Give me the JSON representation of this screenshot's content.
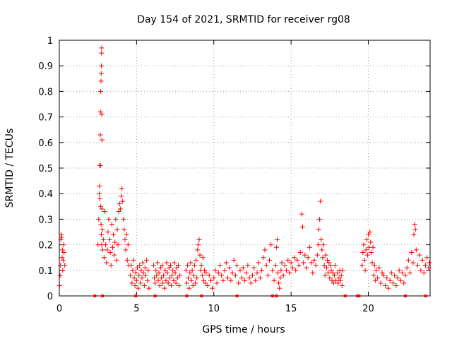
{
  "chart_data": {
    "type": "scatter",
    "title": "Day 154 of 2021, SRMTID for receiver rg08",
    "xlabel": "GPS time / hours",
    "ylabel": "SRMTID / TECUs",
    "xlim": [
      0,
      24
    ],
    "ylim": [
      0,
      1
    ],
    "x_ticks": [
      0,
      5,
      10,
      15,
      20
    ],
    "y_ticks": [
      0,
      0.1,
      0.2,
      0.3,
      0.4,
      0.5,
      0.6,
      0.7,
      0.8,
      0.9,
      1
    ],
    "grid": true,
    "marker": "+",
    "color": "#ff0000",
    "points": [
      [
        0.02,
        0.04
      ],
      [
        0.05,
        0.08
      ],
      [
        0.08,
        0.12
      ],
      [
        0.1,
        0.22
      ],
      [
        0.12,
        0.24
      ],
      [
        0.15,
        0.23
      ],
      [
        0.18,
        0.15
      ],
      [
        0.2,
        0.18
      ],
      [
        0.22,
        0.1
      ],
      [
        0.25,
        0.14
      ],
      [
        0.28,
        0.2
      ],
      [
        0.3,
        0.17
      ],
      [
        0.35,
        0.12
      ],
      [
        2.5,
        0.2
      ],
      [
        2.55,
        0.3
      ],
      [
        2.58,
        0.4
      ],
      [
        2.6,
        0.43
      ],
      [
        2.62,
        0.38
      ],
      [
        2.65,
        0.63
      ],
      [
        2.66,
        0.72
      ],
      [
        2.68,
        0.8
      ],
      [
        2.7,
        0.84
      ],
      [
        2.71,
        0.87
      ],
      [
        2.72,
        0.9
      ],
      [
        2.73,
        0.95
      ],
      [
        2.74,
        0.97
      ],
      [
        2.75,
        0.71
      ],
      [
        2.76,
        0.61
      ],
      [
        2.62,
        0.51
      ],
      [
        2.66,
        0.51
      ],
      [
        2.68,
        0.35
      ],
      [
        2.7,
        0.28
      ],
      [
        2.72,
        0.24
      ],
      [
        2.74,
        0.2
      ],
      [
        2.76,
        0.34
      ],
      [
        2.78,
        0.26
      ],
      [
        2.8,
        0.18
      ],
      [
        2.85,
        0.22
      ],
      [
        2.9,
        0.15
      ],
      [
        2.95,
        0.33
      ],
      [
        3.0,
        0.2
      ],
      [
        3.05,
        0.13
      ],
      [
        3.1,
        0.18
      ],
      [
        3.15,
        0.25
      ],
      [
        3.2,
        0.3
      ],
      [
        3.25,
        0.22
      ],
      [
        3.3,
        0.17
      ],
      [
        3.35,
        0.12
      ],
      [
        3.4,
        0.28
      ],
      [
        3.45,
        0.19
      ],
      [
        3.5,
        0.24
      ],
      [
        3.55,
        0.16
      ],
      [
        3.6,
        0.21
      ],
      [
        3.65,
        0.3
      ],
      [
        3.7,
        0.14
      ],
      [
        3.75,
        0.26
      ],
      [
        3.8,
        0.2
      ],
      [
        3.85,
        0.33
      ],
      [
        3.9,
        0.36
      ],
      [
        3.95,
        0.34
      ],
      [
        4.0,
        0.39
      ],
      [
        4.05,
        0.42
      ],
      [
        4.1,
        0.37
      ],
      [
        4.15,
        0.3
      ],
      [
        4.2,
        0.26
      ],
      [
        4.25,
        0.22
      ],
      [
        4.3,
        0.18
      ],
      [
        4.35,
        0.24
      ],
      [
        4.4,
        0.14
      ],
      [
        4.45,
        0.2
      ],
      [
        4.5,
        0.12
      ],
      [
        4.6,
        0.08
      ],
      [
        4.65,
        0.12
      ],
      [
        4.7,
        0.05
      ],
      [
        4.75,
        0.1
      ],
      [
        4.8,
        0.14
      ],
      [
        4.85,
        0.07
      ],
      [
        4.9,
        0.04
      ],
      [
        4.95,
        0.09
      ],
      [
        5.0,
        0.06
      ],
      [
        5.05,
        0.11
      ],
      [
        5.1,
        0.03
      ],
      [
        5.15,
        0.08
      ],
      [
        5.2,
        0.12
      ],
      [
        5.25,
        0.05
      ],
      [
        5.3,
        0.1
      ],
      [
        5.35,
        0.07
      ],
      [
        5.4,
        0.13
      ],
      [
        5.45,
        0.09
      ],
      [
        5.5,
        0.04
      ],
      [
        5.55,
        0.11
      ],
      [
        5.6,
        0.08
      ],
      [
        5.65,
        0.14
      ],
      [
        5.7,
        0.06
      ],
      [
        5.75,
        0.1
      ],
      [
        5.8,
        0.03
      ],
      [
        6.1,
        0.12
      ],
      [
        6.15,
        0.07
      ],
      [
        6.2,
        0.05
      ],
      [
        6.25,
        0.1
      ],
      [
        6.3,
        0.08
      ],
      [
        6.35,
        0.13
      ],
      [
        6.4,
        0.06
      ],
      [
        6.45,
        0.09
      ],
      [
        6.5,
        0.04
      ],
      [
        6.55,
        0.11
      ],
      [
        6.6,
        0.07
      ],
      [
        6.65,
        0.12
      ],
      [
        6.7,
        0.05
      ],
      [
        6.75,
        0.08
      ],
      [
        6.8,
        0.03
      ],
      [
        6.85,
        0.1
      ],
      [
        6.9,
        0.06
      ],
      [
        6.95,
        0.13
      ],
      [
        7.0,
        0.09
      ],
      [
        7.05,
        0.05
      ],
      [
        7.1,
        0.11
      ],
      [
        7.15,
        0.07
      ],
      [
        7.2,
        0.12
      ],
      [
        7.25,
        0.04
      ],
      [
        7.3,
        0.08
      ],
      [
        7.35,
        0.1
      ],
      [
        7.4,
        0.06
      ],
      [
        7.45,
        0.13
      ],
      [
        7.5,
        0.09
      ],
      [
        7.55,
        0.05
      ],
      [
        7.6,
        0.11
      ],
      [
        7.65,
        0.07
      ],
      [
        7.7,
        0.12
      ],
      [
        7.75,
        0.04
      ],
      [
        7.8,
        0.08
      ],
      [
        8.2,
        0.1
      ],
      [
        8.25,
        0.05
      ],
      [
        8.3,
        0.12
      ],
      [
        8.35,
        0.07
      ],
      [
        8.4,
        0.03
      ],
      [
        8.45,
        0.09
      ],
      [
        8.5,
        0.13
      ],
      [
        8.55,
        0.06
      ],
      [
        8.6,
        0.1
      ],
      [
        8.65,
        0.04
      ],
      [
        8.7,
        0.08
      ],
      [
        8.75,
        0.12
      ],
      [
        8.8,
        0.05
      ],
      [
        8.85,
        0.14
      ],
      [
        8.9,
        0.07
      ],
      [
        8.95,
        0.18
      ],
      [
        9.0,
        0.2
      ],
      [
        9.05,
        0.22
      ],
      [
        9.1,
        0.16
      ],
      [
        9.15,
        0.1
      ],
      [
        9.2,
        0.12
      ],
      [
        9.25,
        0.08
      ],
      [
        9.3,
        0.15
      ],
      [
        9.35,
        0.06
      ],
      [
        9.4,
        0.1
      ],
      [
        9.45,
        0.05
      ],
      [
        9.5,
        0.09
      ],
      [
        9.6,
        0.04
      ],
      [
        9.7,
        0.08
      ],
      [
        9.8,
        0.06
      ],
      [
        9.9,
        0.03
      ],
      [
        10.0,
        0.07
      ],
      [
        10.1,
        0.1
      ],
      [
        10.2,
        0.05
      ],
      [
        10.3,
        0.09
      ],
      [
        10.4,
        0.12
      ],
      [
        10.5,
        0.08
      ],
      [
        10.6,
        0.06
      ],
      [
        10.7,
        0.1
      ],
      [
        10.8,
        0.13
      ],
      [
        10.9,
        0.07
      ],
      [
        11.0,
        0.11
      ],
      [
        11.1,
        0.06
      ],
      [
        11.2,
        0.09
      ],
      [
        11.3,
        0.14
      ],
      [
        11.4,
        0.08
      ],
      [
        11.5,
        0.12
      ],
      [
        11.6,
        0.05
      ],
      [
        11.7,
        0.1
      ],
      [
        11.8,
        0.07
      ],
      [
        11.9,
        0.11
      ],
      [
        12.0,
        0.06
      ],
      [
        12.1,
        0.09
      ],
      [
        12.2,
        0.12
      ],
      [
        12.3,
        0.07
      ],
      [
        12.4,
        0.05
      ],
      [
        12.5,
        0.08
      ],
      [
        12.6,
        0.11
      ],
      [
        12.7,
        0.06
      ],
      [
        12.8,
        0.09
      ],
      [
        12.9,
        0.13
      ],
      [
        13.0,
        0.07
      ],
      [
        13.1,
        0.1
      ],
      [
        13.2,
        0.15
      ],
      [
        13.3,
        0.18
      ],
      [
        13.4,
        0.12
      ],
      [
        13.5,
        0.08
      ],
      [
        13.6,
        0.14
      ],
      [
        13.7,
        0.2
      ],
      [
        13.8,
        0.1
      ],
      [
        13.9,
        0.06
      ],
      [
        14.0,
        0.12
      ],
      [
        14.05,
        0.19
      ],
      [
        14.1,
        0.22
      ],
      [
        14.15,
        0.09
      ],
      [
        14.2,
        0.05
      ],
      [
        14.25,
        0.03
      ],
      [
        14.3,
        0.07
      ],
      [
        14.35,
        0.1
      ],
      [
        14.4,
        0.13
      ],
      [
        14.5,
        0.08
      ],
      [
        14.6,
        0.12
      ],
      [
        14.7,
        0.1
      ],
      [
        14.8,
        0.14
      ],
      [
        14.9,
        0.09
      ],
      [
        15.0,
        0.13
      ],
      [
        15.1,
        0.11
      ],
      [
        15.2,
        0.15
      ],
      [
        15.3,
        0.1
      ],
      [
        15.4,
        0.14
      ],
      [
        15.5,
        0.12
      ],
      [
        15.6,
        0.17
      ],
      [
        15.7,
        0.32
      ],
      [
        15.75,
        0.27
      ],
      [
        15.8,
        0.13
      ],
      [
        15.9,
        0.16
      ],
      [
        16.0,
        0.11
      ],
      [
        16.1,
        0.15
      ],
      [
        16.2,
        0.19
      ],
      [
        16.3,
        0.13
      ],
      [
        16.4,
        0.09
      ],
      [
        16.5,
        0.14
      ],
      [
        16.6,
        0.12
      ],
      [
        16.7,
        0.16
      ],
      [
        16.75,
        0.2
      ],
      [
        16.8,
        0.26
      ],
      [
        16.85,
        0.3
      ],
      [
        16.9,
        0.37
      ],
      [
        16.95,
        0.22
      ],
      [
        17.0,
        0.18
      ],
      [
        17.05,
        0.15
      ],
      [
        17.1,
        0.2
      ],
      [
        17.15,
        0.12
      ],
      [
        17.2,
        0.08
      ],
      [
        17.25,
        0.16
      ],
      [
        17.3,
        0.11
      ],
      [
        17.35,
        0.14
      ],
      [
        17.4,
        0.09
      ],
      [
        17.45,
        0.13
      ],
      [
        17.5,
        0.07
      ],
      [
        17.55,
        0.12
      ],
      [
        17.6,
        0.1
      ],
      [
        17.65,
        0.06
      ],
      [
        17.7,
        0.09
      ],
      [
        17.75,
        0.05
      ],
      [
        17.8,
        0.08
      ],
      [
        17.85,
        0.12
      ],
      [
        17.9,
        0.06
      ],
      [
        18.0,
        0.09
      ],
      [
        18.05,
        0.05
      ],
      [
        18.1,
        0.07
      ],
      [
        18.15,
        0.1
      ],
      [
        18.2,
        0.06
      ],
      [
        18.25,
        0.08
      ],
      [
        18.3,
        0.04
      ],
      [
        18.35,
        0.1
      ],
      [
        19.6,
        0.12
      ],
      [
        19.65,
        0.17
      ],
      [
        19.7,
        0.2
      ],
      [
        19.75,
        0.14
      ],
      [
        19.8,
        0.1
      ],
      [
        19.85,
        0.18
      ],
      [
        19.9,
        0.22
      ],
      [
        19.95,
        0.16
      ],
      [
        20.0,
        0.24
      ],
      [
        20.05,
        0.19
      ],
      [
        20.1,
        0.25
      ],
      [
        20.15,
        0.21
      ],
      [
        20.2,
        0.17
      ],
      [
        20.25,
        0.13
      ],
      [
        20.3,
        0.19
      ],
      [
        20.35,
        0.08
      ],
      [
        20.4,
        0.12
      ],
      [
        20.45,
        0.06
      ],
      [
        20.5,
        0.1
      ],
      [
        20.6,
        0.07
      ],
      [
        20.7,
        0.11
      ],
      [
        20.8,
        0.05
      ],
      [
        20.9,
        0.09
      ],
      [
        21.0,
        0.08
      ],
      [
        21.1,
        0.04
      ],
      [
        21.2,
        0.07
      ],
      [
        21.3,
        0.03
      ],
      [
        21.4,
        0.06
      ],
      [
        21.5,
        0.09
      ],
      [
        21.6,
        0.05
      ],
      [
        21.7,
        0.08
      ],
      [
        21.8,
        0.04
      ],
      [
        21.9,
        0.07
      ],
      [
        22.0,
        0.1
      ],
      [
        22.1,
        0.06
      ],
      [
        22.2,
        0.09
      ],
      [
        22.3,
        0.05
      ],
      [
        22.4,
        0.08
      ],
      [
        22.5,
        0.11
      ],
      [
        22.6,
        0.14
      ],
      [
        22.7,
        0.09
      ],
      [
        22.8,
        0.17
      ],
      [
        22.9,
        0.13
      ],
      [
        22.95,
        0.24
      ],
      [
        23.0,
        0.28
      ],
      [
        23.05,
        0.26
      ],
      [
        23.1,
        0.18
      ],
      [
        23.2,
        0.12
      ],
      [
        23.3,
        0.16
      ],
      [
        23.4,
        0.1
      ],
      [
        23.5,
        0.14
      ],
      [
        23.6,
        0.09
      ],
      [
        23.7,
        0.12
      ],
      [
        23.8,
        0.15
      ],
      [
        23.9,
        0.11
      ],
      [
        23.95,
        0.13
      ]
    ],
    "zero_points": [
      2.3,
      2.8,
      4.95,
      6.2,
      8.25,
      9.2,
      11.5,
      13.8,
      14.05,
      18.5,
      19.3,
      19.4,
      22.4,
      23.7
    ]
  }
}
